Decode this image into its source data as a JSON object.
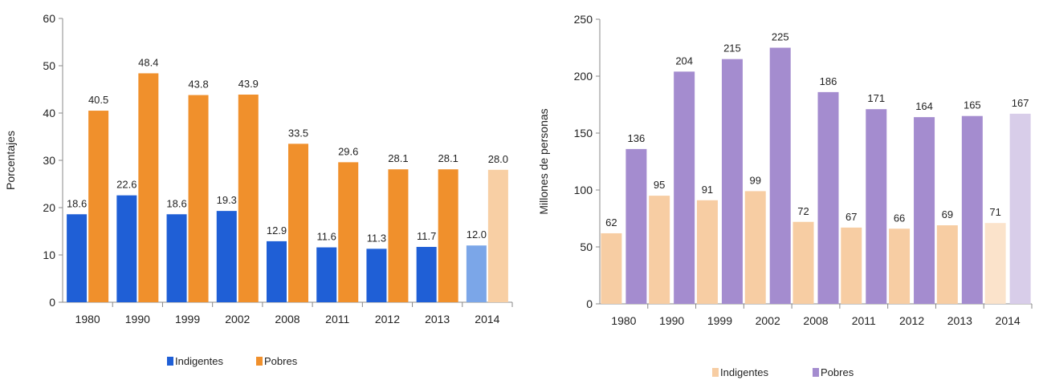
{
  "chart_data": [
    {
      "type": "bar",
      "ylabel": "Porcentajes",
      "ylim": [
        0,
        60
      ],
      "yticks": [
        0,
        10,
        20,
        30,
        40,
        50,
        60
      ],
      "grid": false,
      "legend_position": "bottom",
      "categories": [
        "1980",
        "1990",
        "1999",
        "2002",
        "2008",
        "2011",
        "2012",
        "2013",
        "2014"
      ],
      "series": [
        {
          "name": "Indigentes",
          "color": "#1f5fd6",
          "last_color": "#7ba6e8",
          "values": [
            18.6,
            22.6,
            18.6,
            19.3,
            12.9,
            11.6,
            11.3,
            11.7,
            12.0
          ],
          "labels": [
            "18.6",
            "22.6",
            "18.6",
            "19.3",
            "12.9",
            "11.6",
            "11.3",
            "11.7",
            "12.0"
          ]
        },
        {
          "name": "Pobres",
          "color": "#f0902c",
          "last_color": "#f8cfa4",
          "values": [
            40.5,
            48.4,
            43.8,
            43.9,
            33.5,
            29.6,
            28.1,
            28.1,
            28.0
          ],
          "labels": [
            "40.5",
            "48.4",
            "43.8",
            "43.9",
            "33.5",
            "29.6",
            "28.1",
            "28.1",
            "28.0"
          ]
        }
      ]
    },
    {
      "type": "bar",
      "ylabel": "Millones de personas",
      "ylim": [
        0,
        250
      ],
      "yticks": [
        0,
        50,
        100,
        150,
        200,
        250
      ],
      "grid": false,
      "legend_position": "bottom",
      "categories": [
        "1980",
        "1990",
        "1999",
        "2002",
        "2008",
        "2011",
        "2012",
        "2013",
        "2014"
      ],
      "series": [
        {
          "name": "Indigentes",
          "color": "#f7cda3",
          "last_color": "#fbe3cb",
          "values": [
            62,
            95,
            91,
            99,
            72,
            67,
            66,
            69,
            71
          ],
          "labels": [
            "62",
            "95",
            "91",
            "99",
            "72",
            "67",
            "66",
            "69",
            "71"
          ]
        },
        {
          "name": "Pobres",
          "color": "#a48ccf",
          "last_color": "#d8cde9",
          "values": [
            136,
            204,
            215,
            225,
            186,
            171,
            164,
            165,
            167
          ],
          "labels": [
            "136",
            "204",
            "215",
            "225",
            "186",
            "171",
            "164",
            "165",
            "167"
          ]
        }
      ]
    }
  ]
}
